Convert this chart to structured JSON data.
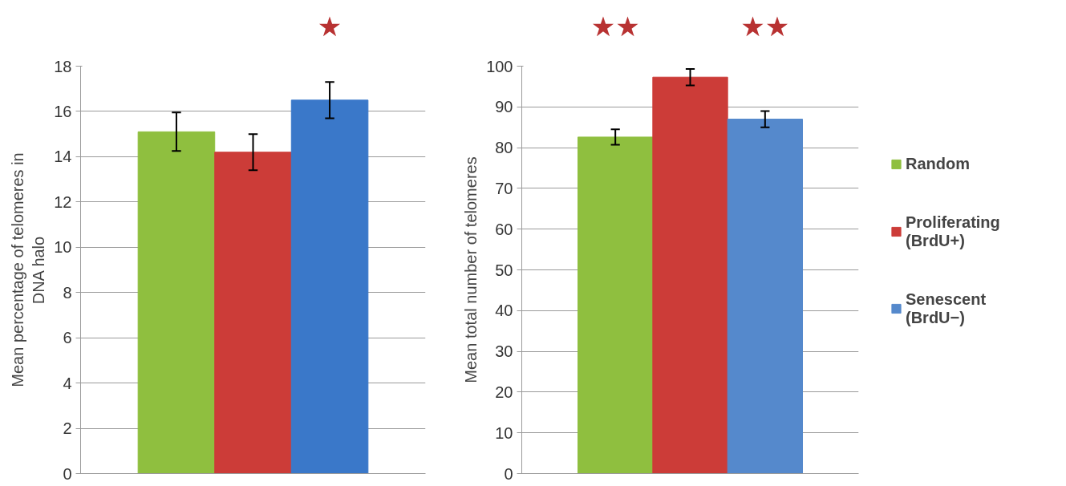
{
  "chart_data": [
    {
      "type": "bar",
      "ylabel": "Mean percentage of telomeres in\nDNA halo",
      "categories": [
        null
      ],
      "ylim": [
        0,
        18
      ],
      "yticks": [
        0,
        2,
        4,
        6,
        8,
        10,
        12,
        14,
        16,
        18
      ],
      "grid": "y",
      "legend": false,
      "series": [
        {
          "color": "#8fbf3f",
          "values": [
            15.1
          ],
          "errors": [
            0.85
          ]
        },
        {
          "color": "#cc3c38",
          "values": [
            14.2
          ],
          "errors": [
            0.8
          ]
        },
        {
          "color": "#3a78c9",
          "values": [
            16.5
          ],
          "errors": [
            0.8
          ]
        }
      ],
      "annotations": [
        null,
        null,
        "★"
      ]
    },
    {
      "type": "bar",
      "ylabel": "Mean total number of telomeres",
      "categories": [
        null
      ],
      "ylim": [
        0,
        100
      ],
      "yticks": [
        0,
        10,
        20,
        30,
        40,
        50,
        60,
        70,
        80,
        90,
        100
      ],
      "grid": "y",
      "legend": "right",
      "series": [
        {
          "name": "Random",
          "color": "#8fbf3f",
          "values": [
            82.6
          ],
          "errors": [
            1.9
          ]
        },
        {
          "name": "Proliferating\n(BrdU+)",
          "color": "#cc3c38",
          "values": [
            97.3
          ],
          "errors": [
            2.0
          ]
        },
        {
          "name": "Senescent\n(BrdU−)",
          "color": "#5589cc",
          "values": [
            87
          ],
          "errors": [
            2.0
          ]
        }
      ],
      "annotations": [
        "★★",
        null,
        "★★"
      ]
    }
  ]
}
